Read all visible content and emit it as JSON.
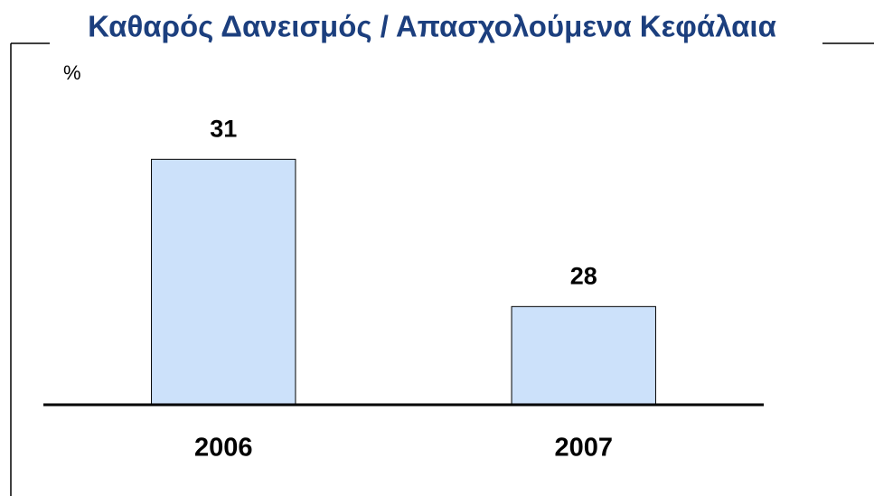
{
  "chart_data": {
    "type": "bar",
    "title": "Καθαρός Δανεισμός / Απασχολούμενα Κεφάλαια",
    "y_axis_label": "%",
    "categories": [
      "2006",
      "2007"
    ],
    "values": [
      31,
      28
    ],
    "color": "#cce1fa",
    "ylim": [
      26,
      32
    ]
  }
}
